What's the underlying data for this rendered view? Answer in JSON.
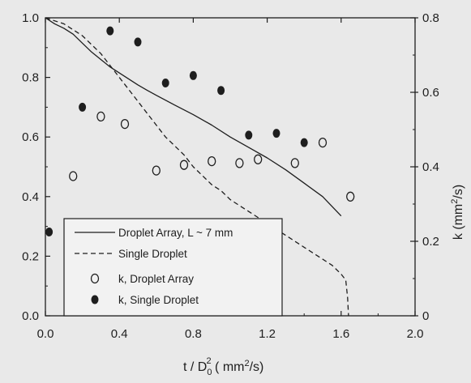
{
  "chart_data": {
    "type": "line+scatter",
    "xlabel_parts": [
      "t / D",
      "0",
      "2",
      " ( mm",
      "2",
      "/s)"
    ],
    "y2label_parts": [
      "k (mm",
      "2",
      "/s)"
    ],
    "xlim": [
      0.0,
      2.0
    ],
    "ylim": [
      0.0,
      1.0
    ],
    "y2lim": [
      0.0,
      0.8
    ],
    "x_ticks": [
      "0.0",
      "0.4",
      "0.8",
      "1.2",
      "1.6",
      "2.0"
    ],
    "y_ticks": [
      "0.0",
      "0.2",
      "0.4",
      "0.6",
      "0.8",
      "1.0"
    ],
    "y2_ticks": [
      "0",
      "0.2",
      "0.4",
      "0.6",
      "0.8"
    ],
    "legend_position": "lower-left",
    "series": [
      {
        "name": "Droplet Array, L ~ 7 mm",
        "kind": "line",
        "style": "solid",
        "axis": "left",
        "x": [
          0.0,
          0.05,
          0.1,
          0.15,
          0.2,
          0.25,
          0.3,
          0.35,
          0.4,
          0.45,
          0.5,
          0.55,
          0.6,
          0.7,
          0.8,
          0.9,
          1.0,
          1.1,
          1.2,
          1.3,
          1.4,
          1.5,
          1.6
        ],
        "y": [
          1.0,
          0.98,
          0.965,
          0.945,
          0.915,
          0.885,
          0.86,
          0.835,
          0.815,
          0.795,
          0.775,
          0.757,
          0.74,
          0.707,
          0.675,
          0.64,
          0.6,
          0.565,
          0.53,
          0.49,
          0.445,
          0.4,
          0.335
        ]
      },
      {
        "name": "Single Droplet",
        "kind": "line",
        "style": "dashed",
        "axis": "left",
        "x": [
          0.0,
          0.1,
          0.2,
          0.3,
          0.35,
          0.4,
          0.45,
          0.5,
          0.55,
          0.6,
          0.65,
          0.7,
          0.75,
          0.8,
          0.85,
          0.9,
          0.95,
          1.0,
          1.1,
          1.2,
          1.3,
          1.4,
          1.5,
          1.55,
          1.6,
          1.625,
          1.635,
          1.64
        ],
        "y": [
          1.0,
          0.98,
          0.94,
          0.88,
          0.84,
          0.8,
          0.76,
          0.72,
          0.68,
          0.64,
          0.6,
          0.57,
          0.54,
          0.5,
          0.47,
          0.44,
          0.42,
          0.39,
          0.35,
          0.31,
          0.27,
          0.23,
          0.19,
          0.17,
          0.14,
          0.12,
          0.06,
          0.0
        ]
      },
      {
        "name": "k, Droplet Array",
        "kind": "scatter",
        "marker": "open",
        "axis": "right",
        "x": [
          0.15,
          0.3,
          0.43,
          0.6,
          0.75,
          0.9,
          1.05,
          1.15,
          1.35,
          1.5,
          1.65
        ],
        "y": [
          0.375,
          0.535,
          0.515,
          0.39,
          0.405,
          0.415,
          0.41,
          0.42,
          0.41,
          0.465,
          0.32
        ]
      },
      {
        "name": "k, Single Droplet",
        "kind": "scatter",
        "marker": "filled",
        "axis": "right",
        "x": [
          0.02,
          0.2,
          0.35,
          0.5,
          0.65,
          0.8,
          0.95,
          1.1,
          1.25,
          1.4
        ],
        "y": [
          0.225,
          0.56,
          0.765,
          0.735,
          0.625,
          0.645,
          0.605,
          0.485,
          0.49,
          0.465
        ]
      }
    ]
  }
}
